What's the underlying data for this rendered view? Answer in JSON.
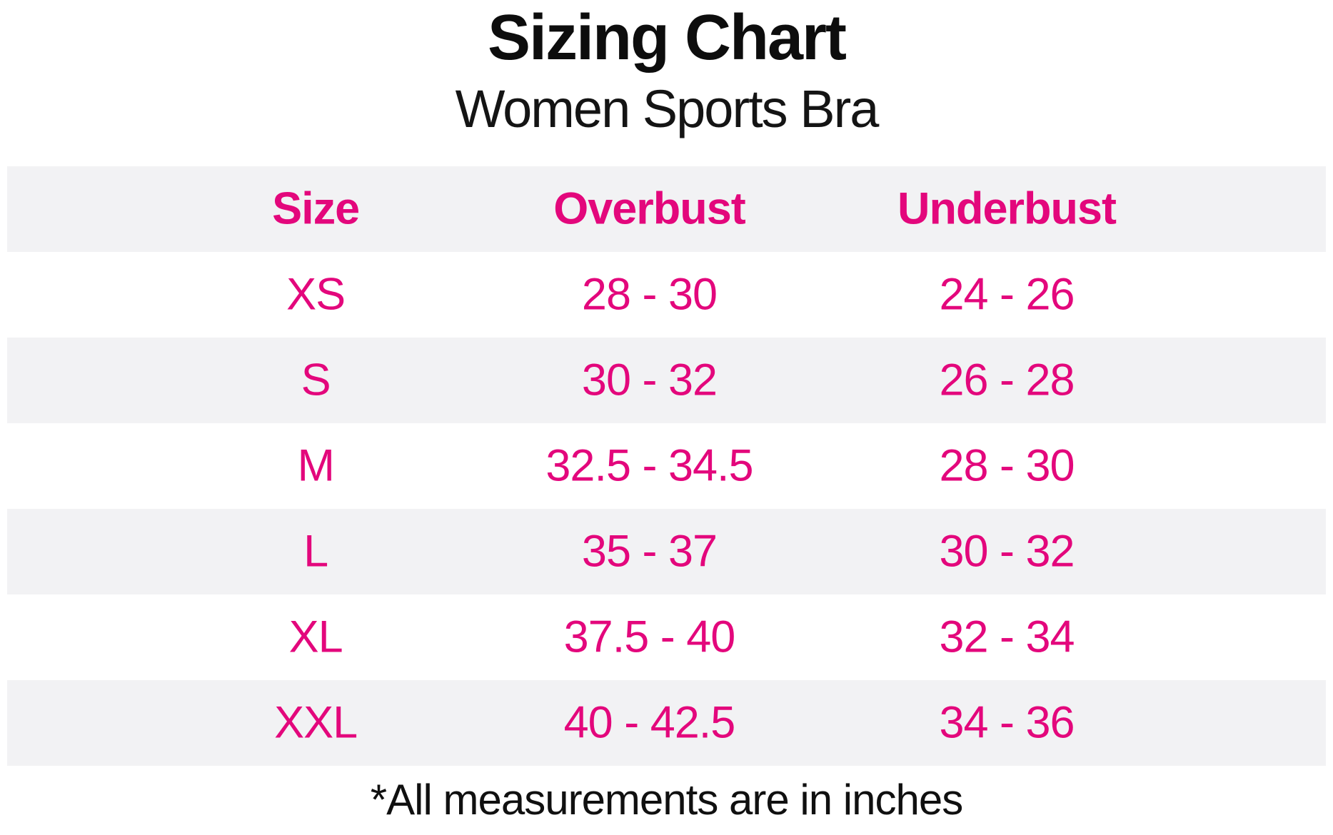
{
  "page": {
    "title": "Sizing Chart",
    "subtitle": "Women Sports Bra",
    "footnote": "*All measurements are in inches"
  },
  "colors": {
    "accent_pink": "#e3077c",
    "row_alt_gray": "#f2f2f4",
    "text_black": "#0d0d0d"
  },
  "chart_data": {
    "type": "table",
    "title": "Sizing Chart",
    "subtitle": "Women Sports Bra",
    "columns": [
      "Size",
      "Overbust",
      "Underbust"
    ],
    "rows": [
      [
        "XS",
        "28 - 30",
        "24 - 26"
      ],
      [
        "S",
        "30 - 32",
        "26 - 28"
      ],
      [
        "M",
        "32.5 - 34.5",
        "28 - 30"
      ],
      [
        "L",
        "35 - 37",
        "30 - 32"
      ],
      [
        "XL",
        "37.5 - 40",
        "32 - 34"
      ],
      [
        "XXL",
        "40 - 42.5",
        "34 - 36"
      ]
    ],
    "units": "inches",
    "footnote": "*All measurements are in inches",
    "layout": {
      "header_background": "#f2f2f4",
      "alternating_rows": true,
      "text_color": "#e3077c"
    }
  }
}
